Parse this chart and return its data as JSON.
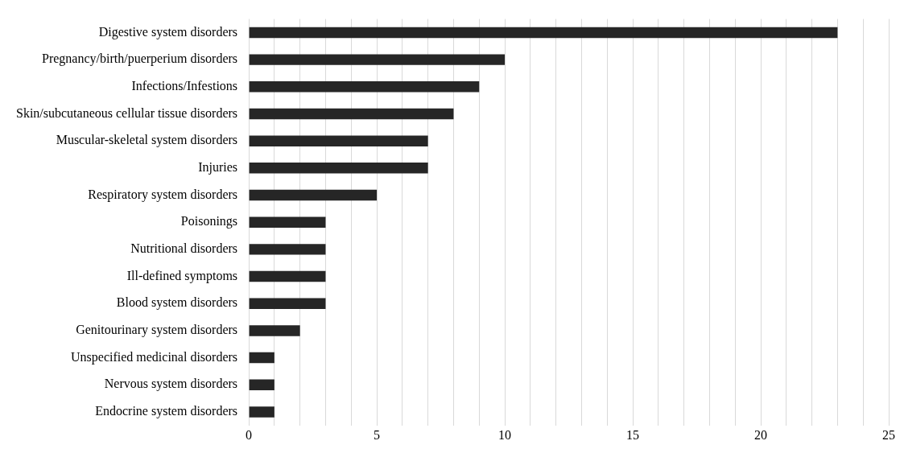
{
  "chart_data": {
    "type": "bar",
    "orientation": "horizontal",
    "categories": [
      "Digestive system disorders",
      "Pregnancy/birth/puerperium disorders",
      "Infections/Infestions",
      "Skin/subcutaneous cellular tissue disorders",
      "Muscular-skeletal system disorders",
      "Injuries",
      "Respiratory system disorders",
      "Poisonings",
      "Nutritional disorders",
      "Ill-defined symptoms",
      "Blood system disorders",
      "Genitourinary system disorders",
      "Unspecified medicinal disorders",
      "Nervous system disorders",
      "Endocrine system disorders"
    ],
    "values": [
      23,
      10,
      9,
      8,
      7,
      7,
      5,
      3,
      3,
      3,
      3,
      2,
      1,
      1,
      1
    ],
    "color": "#262626",
    "xlim": [
      0,
      25
    ],
    "xticks": [
      0,
      {
        "value": 1,
        "label": null
      },
      {
        "value": 2,
        "label": null
      },
      {
        "value": 3,
        "label": null
      },
      {
        "value": 4,
        "label": null
      },
      5,
      {
        "value": 6,
        "label": null
      },
      {
        "value": 7,
        "label": null
      },
      {
        "value": 8,
        "label": null
      },
      {
        "value": 9,
        "label": null
      },
      10,
      {
        "value": 11,
        "label": null
      },
      {
        "value": 12,
        "label": null
      },
      {
        "value": 13,
        "label": null
      },
      {
        "value": 14,
        "label": null
      },
      15,
      {
        "value": 16,
        "label": null
      },
      {
        "value": 17,
        "label": null
      },
      {
        "value": 18,
        "label": null
      },
      {
        "value": 19,
        "label": null
      },
      20,
      {
        "value": 21,
        "label": null
      },
      {
        "value": 22,
        "label": null
      },
      {
        "value": 23,
        "label": null
      },
      {
        "value": 24,
        "label": null
      },
      25
    ],
    "grid": "x",
    "legend": false
  }
}
